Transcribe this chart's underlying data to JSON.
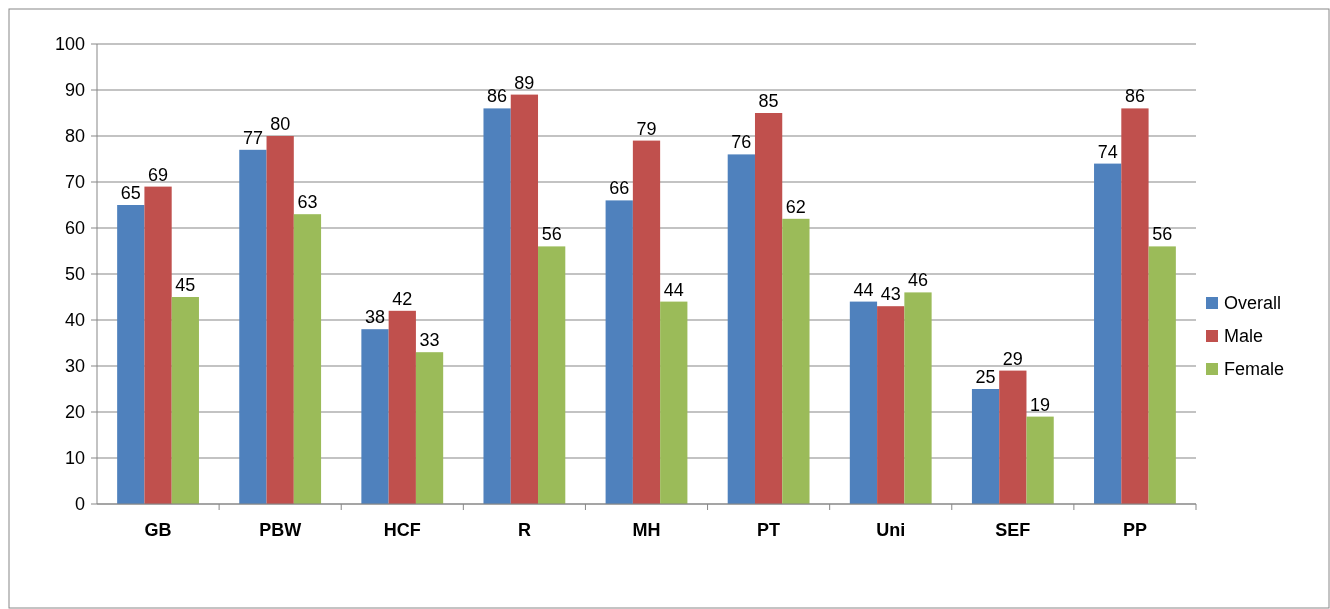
{
  "chart_data": {
    "type": "bar",
    "categories": [
      "GB",
      "PBW",
      "HCF",
      "R",
      "MH",
      "PT",
      "Uni",
      "SEF",
      "PP"
    ],
    "series": [
      {
        "name": "Overall",
        "color": "#4f81bd",
        "values": [
          65,
          77,
          38,
          86,
          66,
          76,
          44,
          25,
          74
        ]
      },
      {
        "name": "Male",
        "color": "#c0504d",
        "values": [
          69,
          80,
          42,
          89,
          79,
          85,
          43,
          29,
          86
        ]
      },
      {
        "name": "Female",
        "color": "#9bbb59",
        "values": [
          45,
          63,
          33,
          56,
          44,
          62,
          46,
          19,
          56
        ]
      }
    ],
    "ylim": [
      0,
      100
    ],
    "yticks": [
      0,
      10,
      20,
      30,
      40,
      50,
      60,
      70,
      80,
      90,
      100
    ],
    "grid": "y",
    "legend": "right",
    "data_labels": true
  }
}
